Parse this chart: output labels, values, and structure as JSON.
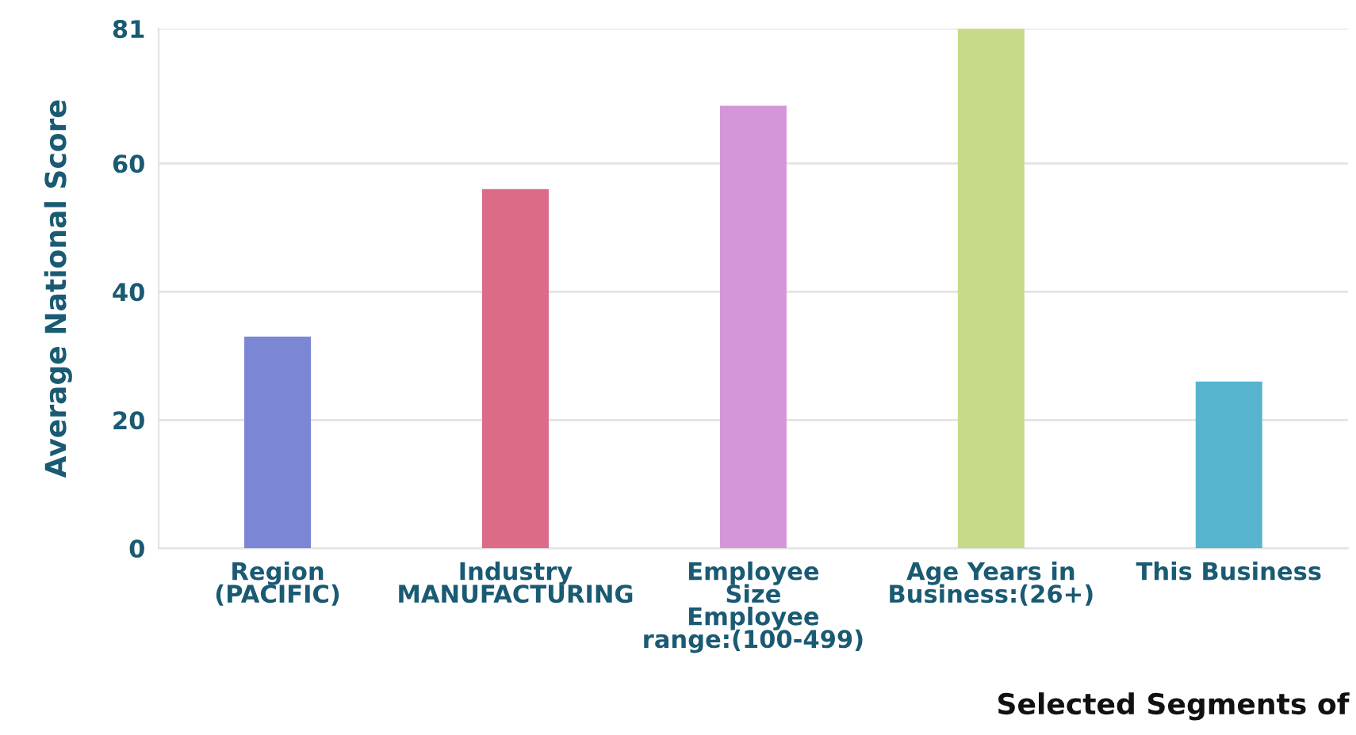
{
  "chart_data": {
    "type": "bar",
    "xlabel": "Selected Segments of",
    "ylabel": "Average National Score",
    "categories": [
      "Region\n(PACIFIC)",
      "Industry\nMANUFACTURING",
      "Employee\nSize\nEmployee\nrange:(100-499)",
      "Age Years in\nBusiness:(26+)",
      "This Business"
    ],
    "values": [
      33,
      56,
      69,
      81,
      26
    ],
    "colors": [
      "#7b86d4",
      "#dc6b87",
      "#d496d9",
      "#c6da8a",
      "#56b4cf"
    ],
    "ylim": [
      0,
      81
    ],
    "yticks": [
      0,
      20,
      40,
      60,
      81
    ],
    "grid": "y",
    "legend": false
  }
}
